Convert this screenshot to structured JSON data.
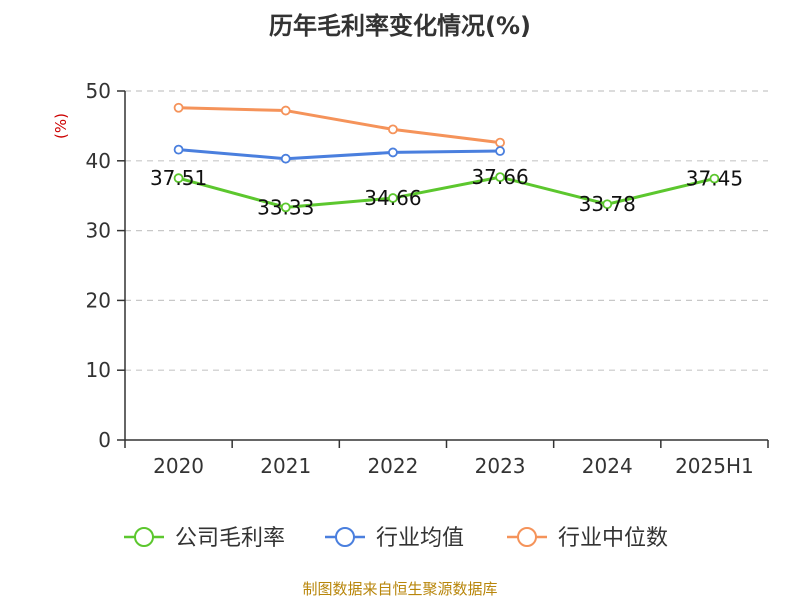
{
  "chart_data": {
    "type": "line",
    "title": "历年毛利率变化情况(%)",
    "unit_label": "(%)",
    "categories": [
      "2020",
      "2021",
      "2022",
      "2023",
      "2024",
      "2025H1"
    ],
    "ylim": [
      0,
      50
    ],
    "yticks": [
      0,
      10,
      20,
      30,
      40,
      50
    ],
    "grid": true,
    "legend_position": "bottom",
    "series": [
      {
        "name": "公司毛利率",
        "color": "#5cc72e",
        "values": [
          37.51,
          33.33,
          34.66,
          37.66,
          33.78,
          37.45
        ],
        "labels": [
          "37.51",
          "33.33",
          "34.66",
          "37.66",
          "33.78",
          "37.45"
        ]
      },
      {
        "name": "行业均值",
        "color": "#4a7fde",
        "values": [
          41.6,
          40.3,
          41.2,
          41.4,
          null,
          null
        ]
      },
      {
        "name": "行业中位数",
        "color": "#f5935a",
        "values": [
          47.6,
          47.2,
          44.5,
          42.6,
          null,
          null
        ]
      }
    ]
  },
  "footer": {
    "source": "制图数据来自恒生聚源数据库"
  }
}
